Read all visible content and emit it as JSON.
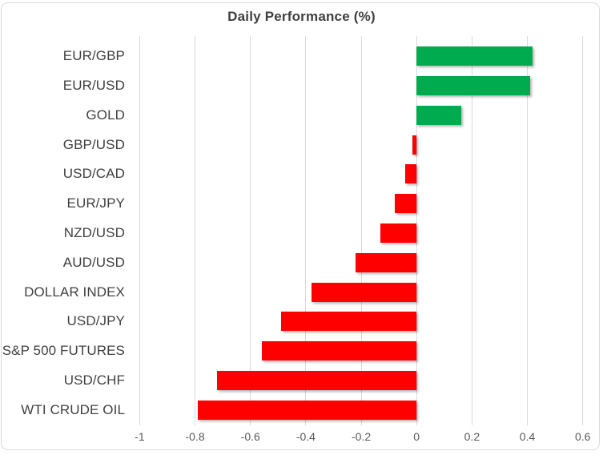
{
  "chart": {
    "title": "Daily Performance (%)"
  },
  "chart_data": {
    "type": "bar",
    "orientation": "horizontal",
    "title": "Daily Performance (%)",
    "categories": [
      "EUR/GBP",
      "EUR/USD",
      "GOLD",
      "GBP/USD",
      "USD/CAD",
      "EUR/JPY",
      "NZD/USD",
      "AUD/USD",
      "DOLLAR INDEX",
      "USD/JPY",
      "S&P 500 FUTURES",
      "USD/CHF",
      "WTI CRUDE OIL"
    ],
    "values": [
      0.42,
      0.41,
      0.16,
      -0.015,
      -0.04,
      -0.08,
      -0.13,
      -0.22,
      -0.38,
      -0.49,
      -0.56,
      -0.72,
      -0.79
    ],
    "xlabel": "",
    "ylabel": "",
    "xlim": [
      -1,
      0.6
    ],
    "xticks": [
      -1,
      -0.8,
      -0.6,
      -0.4,
      -0.2,
      0,
      0.2,
      0.4,
      0.6
    ],
    "xtick_labels": [
      "-1",
      "-0.8",
      "-0.6",
      "-0.4",
      "-0.2",
      "0",
      "0.2",
      "0.4",
      "0.6"
    ],
    "grid": true,
    "legend": "none",
    "colors": {
      "positive": "#00AB4F",
      "negative": "#FF0000",
      "gridline": "#D9D9D9",
      "frame_border": "#D9D9D9",
      "title": "#3F3F3F",
      "category_label": "#404040",
      "tick_label": "#595959",
      "background": "#FFFFFF"
    }
  }
}
